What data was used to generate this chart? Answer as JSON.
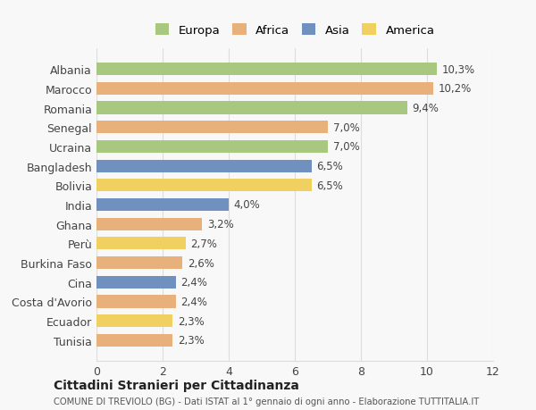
{
  "countries": [
    "Albania",
    "Marocco",
    "Romania",
    "Senegal",
    "Ucraina",
    "Bangladesh",
    "Bolivia",
    "India",
    "Ghana",
    "Perù",
    "Burkina Faso",
    "Cina",
    "Costa d'Avorio",
    "Ecuador",
    "Tunisia"
  ],
  "values": [
    10.3,
    10.2,
    9.4,
    7.0,
    7.0,
    6.5,
    6.5,
    4.0,
    3.2,
    2.7,
    2.6,
    2.4,
    2.4,
    2.3,
    2.3
  ],
  "continents": [
    "Europa",
    "Africa",
    "Europa",
    "Africa",
    "Europa",
    "Asia",
    "America",
    "Asia",
    "Africa",
    "America",
    "Africa",
    "Asia",
    "Africa",
    "America",
    "Africa"
  ],
  "colors": {
    "Europa": "#a8c880",
    "Africa": "#e8b07a",
    "Asia": "#7090c0",
    "America": "#f0d060"
  },
  "legend_order": [
    "Europa",
    "Africa",
    "Asia",
    "America"
  ],
  "title": "Cittadini Stranieri per Cittadinanza",
  "subtitle": "COMUNE DI TREVIOLO (BG) - Dati ISTAT al 1° gennaio di ogni anno - Elaborazione TUTTITALIA.IT",
  "xlim": [
    0,
    12
  ],
  "xticks": [
    0,
    2,
    4,
    6,
    8,
    10,
    12
  ],
  "bg_color": "#f8f8f8",
  "grid_color": "#dddddd"
}
